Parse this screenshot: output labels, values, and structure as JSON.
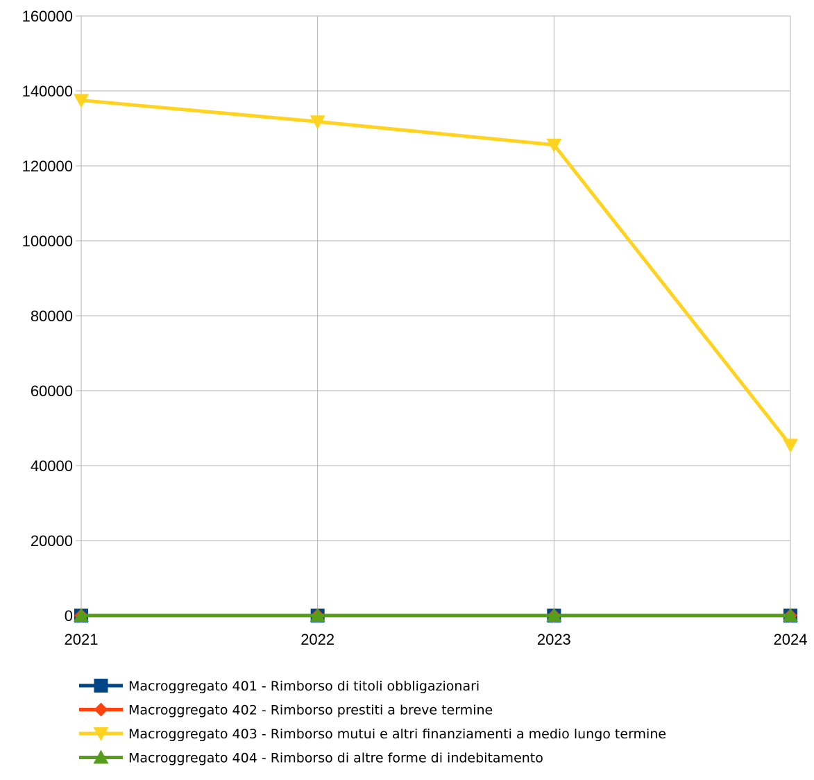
{
  "chart_data": {
    "type": "line",
    "title": "",
    "xlabel": "",
    "ylabel": "",
    "categories": [
      "2021",
      "2022",
      "2023",
      "2024"
    ],
    "ylim": [
      0,
      160000
    ],
    "yticks": [
      0,
      20000,
      40000,
      60000,
      80000,
      100000,
      120000,
      140000,
      160000
    ],
    "grid": true,
    "legend_position": "bottom",
    "series": [
      {
        "name": "Macroggregato 401 - Rimborso di titoli obbligazionari",
        "color": "#004586",
        "marker": "square",
        "values": [
          0,
          0,
          0,
          0
        ]
      },
      {
        "name": "Macroggregato 402 - Rimborso prestiti a breve termine",
        "color": "#ff420e",
        "marker": "diamond",
        "values": [
          0,
          0,
          0,
          0
        ]
      },
      {
        "name": "Macroggregato 403 - Rimborso mutui e altri finanziamenti a medio lungo termine",
        "color": "#ffd320",
        "marker": "triangle-down",
        "values": [
          137500,
          131800,
          125600,
          45500
        ]
      },
      {
        "name": "Macroggregato 404 - Rimborso di altre forme di indebitamento",
        "color": "#579d1c",
        "marker": "triangle-up",
        "values": [
          0,
          0,
          0,
          0
        ]
      }
    ]
  }
}
